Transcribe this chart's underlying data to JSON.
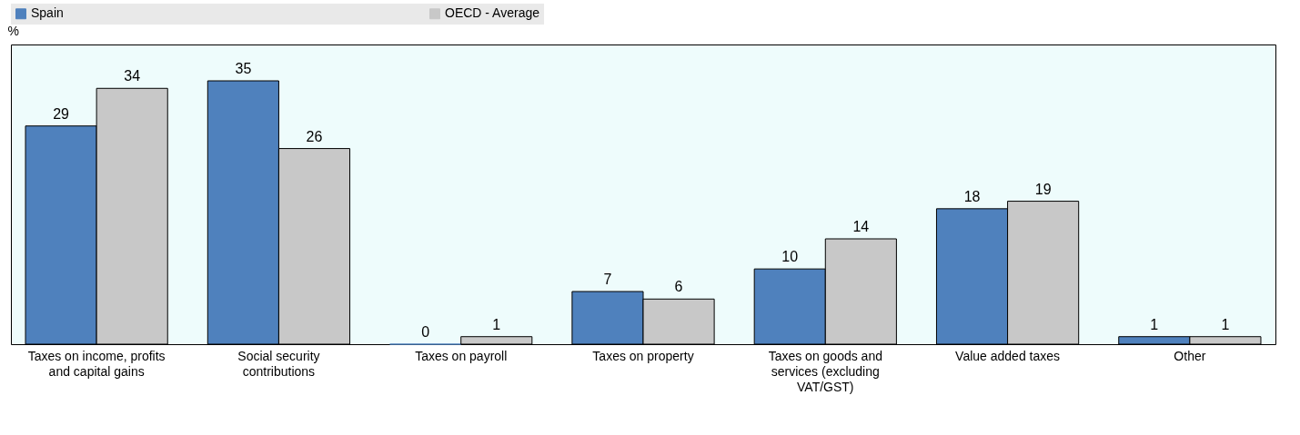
{
  "chart_data": {
    "type": "bar",
    "ylabel": "%",
    "categories": [
      "Taxes on income, profits and capital gains",
      "Social security contributions",
      "Taxes on payroll",
      "Taxes on property",
      "Taxes on goods and services (excluding VAT/GST)",
      "Value added taxes",
      "Other"
    ],
    "series": [
      {
        "name": "Spain",
        "color": "#4f81bd",
        "values": [
          29,
          35,
          0,
          7,
          10,
          18,
          1
        ]
      },
      {
        "name": "OECD - Average",
        "color": "#c8c8c8",
        "values": [
          34,
          26,
          1,
          6,
          14,
          19,
          1
        ]
      }
    ],
    "data_labels": true,
    "legend": "top",
    "grid": false,
    "tick_labels": "x"
  }
}
